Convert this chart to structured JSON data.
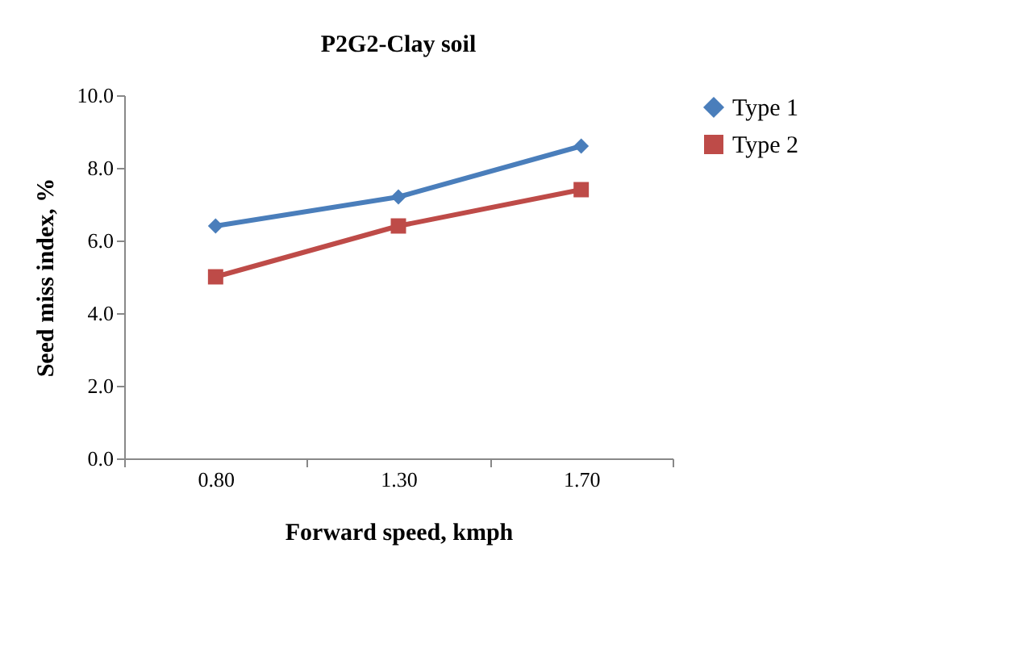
{
  "chart_data": {
    "type": "line",
    "title": "P2G2-Clay soil",
    "xlabel": "Forward speed, kmph",
    "ylabel": "Seed miss index, %",
    "categories": [
      "0.80",
      "1.30",
      "1.70"
    ],
    "series": [
      {
        "name": "Type 1",
        "color": "#4a7ebb",
        "values": [
          6.4,
          7.2,
          8.6
        ],
        "marker": "diamond"
      },
      {
        "name": "Type 2",
        "color": "#be4b48",
        "values": [
          5.0,
          6.4,
          7.4
        ],
        "marker": "square"
      }
    ],
    "ylim": [
      0,
      10
    ],
    "yticks": [
      {
        "value": 0,
        "label": "0.0"
      },
      {
        "value": 2,
        "label": "2.0"
      },
      {
        "value": 4,
        "label": "4.0"
      },
      {
        "value": 6,
        "label": "6.0"
      },
      {
        "value": 8,
        "label": "8.0"
      },
      {
        "value": 10,
        "label": "10.0"
      }
    ],
    "grid": false,
    "legend": "right",
    "line_style": "solid"
  }
}
